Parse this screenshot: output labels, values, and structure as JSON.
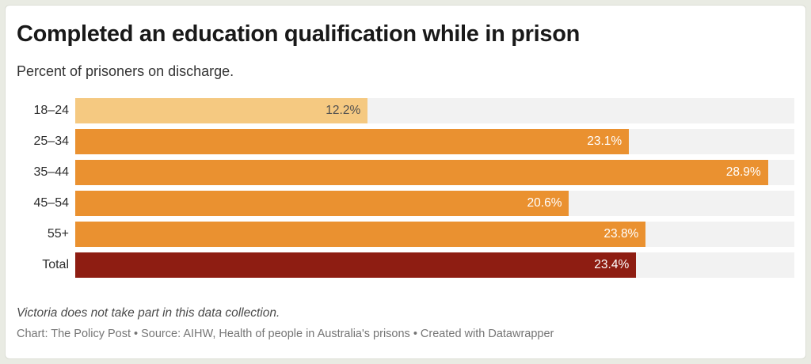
{
  "page": {
    "background": "#e9ebe3",
    "card_background": "#ffffff",
    "card_border": "#dcded6"
  },
  "header": {
    "title": "Completed an education qualification while in prison",
    "subtitle": "Percent of prisoners on discharge."
  },
  "chart_data": {
    "type": "bar",
    "orientation": "horizontal",
    "title": "Completed an education qualification while in prison",
    "subtitle": "Percent of prisoners on discharge.",
    "categories": [
      "18–24",
      "25–34",
      "35–44",
      "45–54",
      "55+",
      "Total"
    ],
    "values": [
      12.2,
      23.1,
      28.9,
      20.6,
      23.8,
      23.4
    ],
    "value_labels": [
      "12.2%",
      "23.1%",
      "28.9%",
      "20.6%",
      "23.8%",
      "23.4%"
    ],
    "xlim": [
      0,
      30
    ],
    "axis_visible": false,
    "grid": false,
    "legend": "none",
    "track_color": "#f2f2f2",
    "bar_colors": [
      "#f5c981",
      "#ea9130",
      "#ea9130",
      "#ea9130",
      "#ea9130",
      "#8e1d12"
    ],
    "value_label_colors": [
      "#4f4f4f",
      "#ffffff",
      "#ffffff",
      "#ffffff",
      "#ffffff",
      "#ffffff"
    ]
  },
  "footer": {
    "note": "Victoria does not take part in this data collection.",
    "credit": "Chart: The Policy Post • Source: AIHW, Health of people in Australia's prisons • Created with Datawrapper"
  }
}
